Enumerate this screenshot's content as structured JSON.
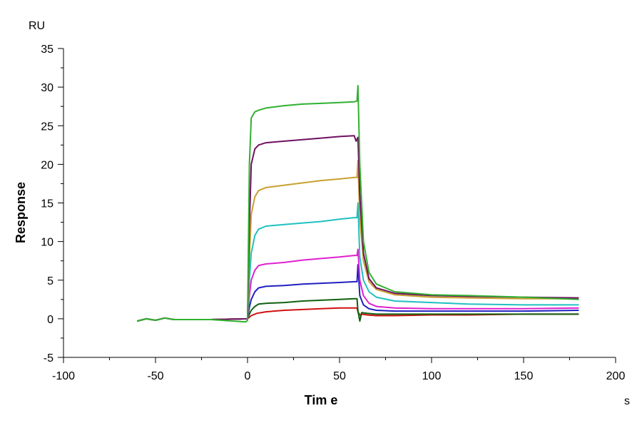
{
  "chart_data": {
    "type": "line",
    "title": "",
    "xlabel": "Tim e",
    "ylabel": "Response",
    "x_unit": "s",
    "y_unit": "RU",
    "xlim": [
      -100,
      200
    ],
    "ylim": [
      -5,
      35
    ],
    "x_ticks": [
      -100,
      -50,
      0,
      50,
      100,
      150,
      200
    ],
    "y_ticks": [
      -5,
      0,
      5,
      10,
      15,
      20,
      25,
      30,
      35
    ],
    "x_tick_labels": [
      "-100",
      "-50",
      "0",
      "50",
      "100",
      "150",
      "200"
    ],
    "y_tick_labels": [
      "-5",
      "0",
      "5",
      "10",
      "15",
      "20",
      "25",
      "30",
      "35"
    ],
    "grid": false,
    "legend": "none",
    "series": [
      {
        "color": "#d01010",
        "points": [
          [
            -60,
            -0.3
          ],
          [
            -55,
            0.0
          ],
          [
            -50,
            -0.2
          ],
          [
            -45,
            0.1
          ],
          [
            -40,
            -0.1
          ],
          [
            -20,
            -0.1
          ],
          [
            0,
            0.0
          ],
          [
            1,
            0.2
          ],
          [
            2,
            0.4
          ],
          [
            5,
            0.7
          ],
          [
            10,
            0.9
          ],
          [
            20,
            1.1
          ],
          [
            30,
            1.2
          ],
          [
            40,
            1.3
          ],
          [
            50,
            1.4
          ],
          [
            58,
            1.4
          ],
          [
            59.5,
            1.4
          ],
          [
            60,
            0.9
          ],
          [
            61,
            0.5
          ],
          [
            62,
            0.6
          ],
          [
            65,
            0.5
          ],
          [
            70,
            0.4
          ],
          [
            80,
            0.4
          ],
          [
            100,
            0.5
          ],
          [
            120,
            0.5
          ],
          [
            150,
            0.6
          ],
          [
            180,
            0.6
          ]
        ]
      },
      {
        "color": "#106010",
        "points": [
          [
            -60,
            -0.3
          ],
          [
            -55,
            0.0
          ],
          [
            -50,
            -0.2
          ],
          [
            -45,
            0.1
          ],
          [
            -40,
            -0.1
          ],
          [
            -20,
            -0.1
          ],
          [
            0,
            0.0
          ],
          [
            1,
            0.6
          ],
          [
            2,
            1.1
          ],
          [
            4,
            1.6
          ],
          [
            6,
            1.9
          ],
          [
            10,
            2.0
          ],
          [
            20,
            2.1
          ],
          [
            30,
            2.3
          ],
          [
            40,
            2.4
          ],
          [
            50,
            2.5
          ],
          [
            58,
            2.6
          ],
          [
            59.5,
            2.6
          ],
          [
            60,
            1.0
          ],
          [
            61,
            -0.3
          ],
          [
            62,
            0.8
          ],
          [
            65,
            0.7
          ],
          [
            70,
            0.6
          ],
          [
            80,
            0.6
          ],
          [
            100,
            0.6
          ],
          [
            120,
            0.6
          ],
          [
            150,
            0.6
          ],
          [
            180,
            0.6
          ]
        ]
      },
      {
        "color": "#2020c0",
        "points": [
          [
            -60,
            -0.3
          ],
          [
            -55,
            0.0
          ],
          [
            -50,
            -0.2
          ],
          [
            -45,
            0.1
          ],
          [
            -40,
            -0.1
          ],
          [
            -20,
            -0.1
          ],
          [
            0,
            0.0
          ],
          [
            1,
            1.5
          ],
          [
            2,
            2.5
          ],
          [
            4,
            3.5
          ],
          [
            6,
            4.0
          ],
          [
            10,
            4.2
          ],
          [
            20,
            4.3
          ],
          [
            30,
            4.5
          ],
          [
            40,
            4.6
          ],
          [
            50,
            4.7
          ],
          [
            58,
            4.8
          ],
          [
            59.5,
            4.8
          ],
          [
            60,
            7.0
          ],
          [
            61,
            3.0
          ],
          [
            63,
            1.8
          ],
          [
            66,
            1.3
          ],
          [
            70,
            1.1
          ],
          [
            80,
            1.0
          ],
          [
            100,
            1.0
          ],
          [
            120,
            1.0
          ],
          [
            150,
            1.0
          ],
          [
            180,
            1.1
          ]
        ]
      },
      {
        "color": "#e020d0",
        "points": [
          [
            -60,
            -0.3
          ],
          [
            -55,
            0.0
          ],
          [
            -50,
            -0.2
          ],
          [
            -45,
            0.1
          ],
          [
            -40,
            -0.1
          ],
          [
            -20,
            -0.1
          ],
          [
            0,
            0.0
          ],
          [
            1,
            3.0
          ],
          [
            2,
            5.0
          ],
          [
            4,
            6.3
          ],
          [
            6,
            6.9
          ],
          [
            10,
            7.1
          ],
          [
            20,
            7.3
          ],
          [
            30,
            7.6
          ],
          [
            40,
            7.8
          ],
          [
            50,
            8.0
          ],
          [
            58,
            8.2
          ],
          [
            59.5,
            8.2
          ],
          [
            60,
            9.0
          ],
          [
            61,
            5.0
          ],
          [
            63,
            3.0
          ],
          [
            66,
            2.0
          ],
          [
            70,
            1.6
          ],
          [
            80,
            1.4
          ],
          [
            100,
            1.3
          ],
          [
            120,
            1.3
          ],
          [
            150,
            1.3
          ],
          [
            180,
            1.4
          ]
        ]
      },
      {
        "color": "#20c0c0",
        "points": [
          [
            -60,
            -0.3
          ],
          [
            -55,
            0.0
          ],
          [
            -50,
            -0.2
          ],
          [
            -45,
            0.1
          ],
          [
            -40,
            -0.1
          ],
          [
            -20,
            -0.1
          ],
          [
            0,
            0.0
          ],
          [
            1,
            5.0
          ],
          [
            2,
            8.5
          ],
          [
            4,
            10.8
          ],
          [
            6,
            11.6
          ],
          [
            10,
            12.0
          ],
          [
            20,
            12.2
          ],
          [
            30,
            12.4
          ],
          [
            40,
            12.6
          ],
          [
            50,
            12.9
          ],
          [
            58,
            13.1
          ],
          [
            59.5,
            13.1
          ],
          [
            60,
            15.0
          ],
          [
            61,
            8.0
          ],
          [
            63,
            5.0
          ],
          [
            66,
            3.5
          ],
          [
            70,
            2.8
          ],
          [
            80,
            2.3
          ],
          [
            100,
            2.1
          ],
          [
            120,
            1.9
          ],
          [
            150,
            1.8
          ],
          [
            180,
            1.8
          ]
        ]
      },
      {
        "color": "#c8a030",
        "points": [
          [
            -60,
            -0.3
          ],
          [
            -55,
            0.0
          ],
          [
            -50,
            -0.2
          ],
          [
            -45,
            0.1
          ],
          [
            -40,
            -0.1
          ],
          [
            -20,
            -0.1
          ],
          [
            0,
            0.0
          ],
          [
            1,
            8.0
          ],
          [
            2,
            13.5
          ],
          [
            4,
            15.8
          ],
          [
            6,
            16.6
          ],
          [
            10,
            17.0
          ],
          [
            20,
            17.3
          ],
          [
            30,
            17.6
          ],
          [
            40,
            17.9
          ],
          [
            50,
            18.1
          ],
          [
            58,
            18.3
          ],
          [
            59.5,
            18.3
          ],
          [
            60,
            20.5
          ],
          [
            61,
            13.0
          ],
          [
            63,
            7.5
          ],
          [
            66,
            4.8
          ],
          [
            70,
            3.8
          ],
          [
            80,
            3.1
          ],
          [
            100,
            2.8
          ],
          [
            120,
            2.7
          ],
          [
            150,
            2.6
          ],
          [
            180,
            2.6
          ]
        ]
      },
      {
        "color": "#701060",
        "points": [
          [
            -60,
            -0.3
          ],
          [
            -55,
            0.0
          ],
          [
            -50,
            -0.2
          ],
          [
            -45,
            0.1
          ],
          [
            -40,
            -0.1
          ],
          [
            -20,
            -0.1
          ],
          [
            0,
            0.0
          ],
          [
            1,
            12.0
          ],
          [
            2,
            20.0
          ],
          [
            4,
            22.0
          ],
          [
            6,
            22.5
          ],
          [
            10,
            22.8
          ],
          [
            20,
            23.0
          ],
          [
            30,
            23.2
          ],
          [
            40,
            23.4
          ],
          [
            50,
            23.6
          ],
          [
            58,
            23.7
          ],
          [
            59,
            23.0
          ],
          [
            60,
            23.5
          ],
          [
            61,
            16.0
          ],
          [
            63,
            8.5
          ],
          [
            66,
            5.2
          ],
          [
            70,
            4.0
          ],
          [
            80,
            3.3
          ],
          [
            100,
            3.0
          ],
          [
            120,
            2.9
          ],
          [
            150,
            2.8
          ],
          [
            180,
            2.7
          ]
        ]
      },
      {
        "color": "#30b030",
        "points": [
          [
            -60,
            -0.3
          ],
          [
            -55,
            0.0
          ],
          [
            -50,
            -0.2
          ],
          [
            -45,
            0.1
          ],
          [
            -40,
            -0.1
          ],
          [
            -20,
            -0.1
          ],
          [
            -1,
            -0.4
          ],
          [
            0,
            -0.2
          ],
          [
            1,
            20.0
          ],
          [
            2,
            26.0
          ],
          [
            4,
            26.8
          ],
          [
            6,
            27.0
          ],
          [
            10,
            27.3
          ],
          [
            20,
            27.6
          ],
          [
            30,
            27.8
          ],
          [
            40,
            27.9
          ],
          [
            50,
            28.0
          ],
          [
            58,
            28.1
          ],
          [
            59.5,
            28.2
          ],
          [
            60,
            30.2
          ],
          [
            61,
            20.0
          ],
          [
            63,
            10.0
          ],
          [
            66,
            6.0
          ],
          [
            70,
            4.5
          ],
          [
            80,
            3.5
          ],
          [
            100,
            3.1
          ],
          [
            120,
            3.0
          ],
          [
            150,
            2.8
          ],
          [
            180,
            2.5
          ]
        ]
      }
    ]
  }
}
